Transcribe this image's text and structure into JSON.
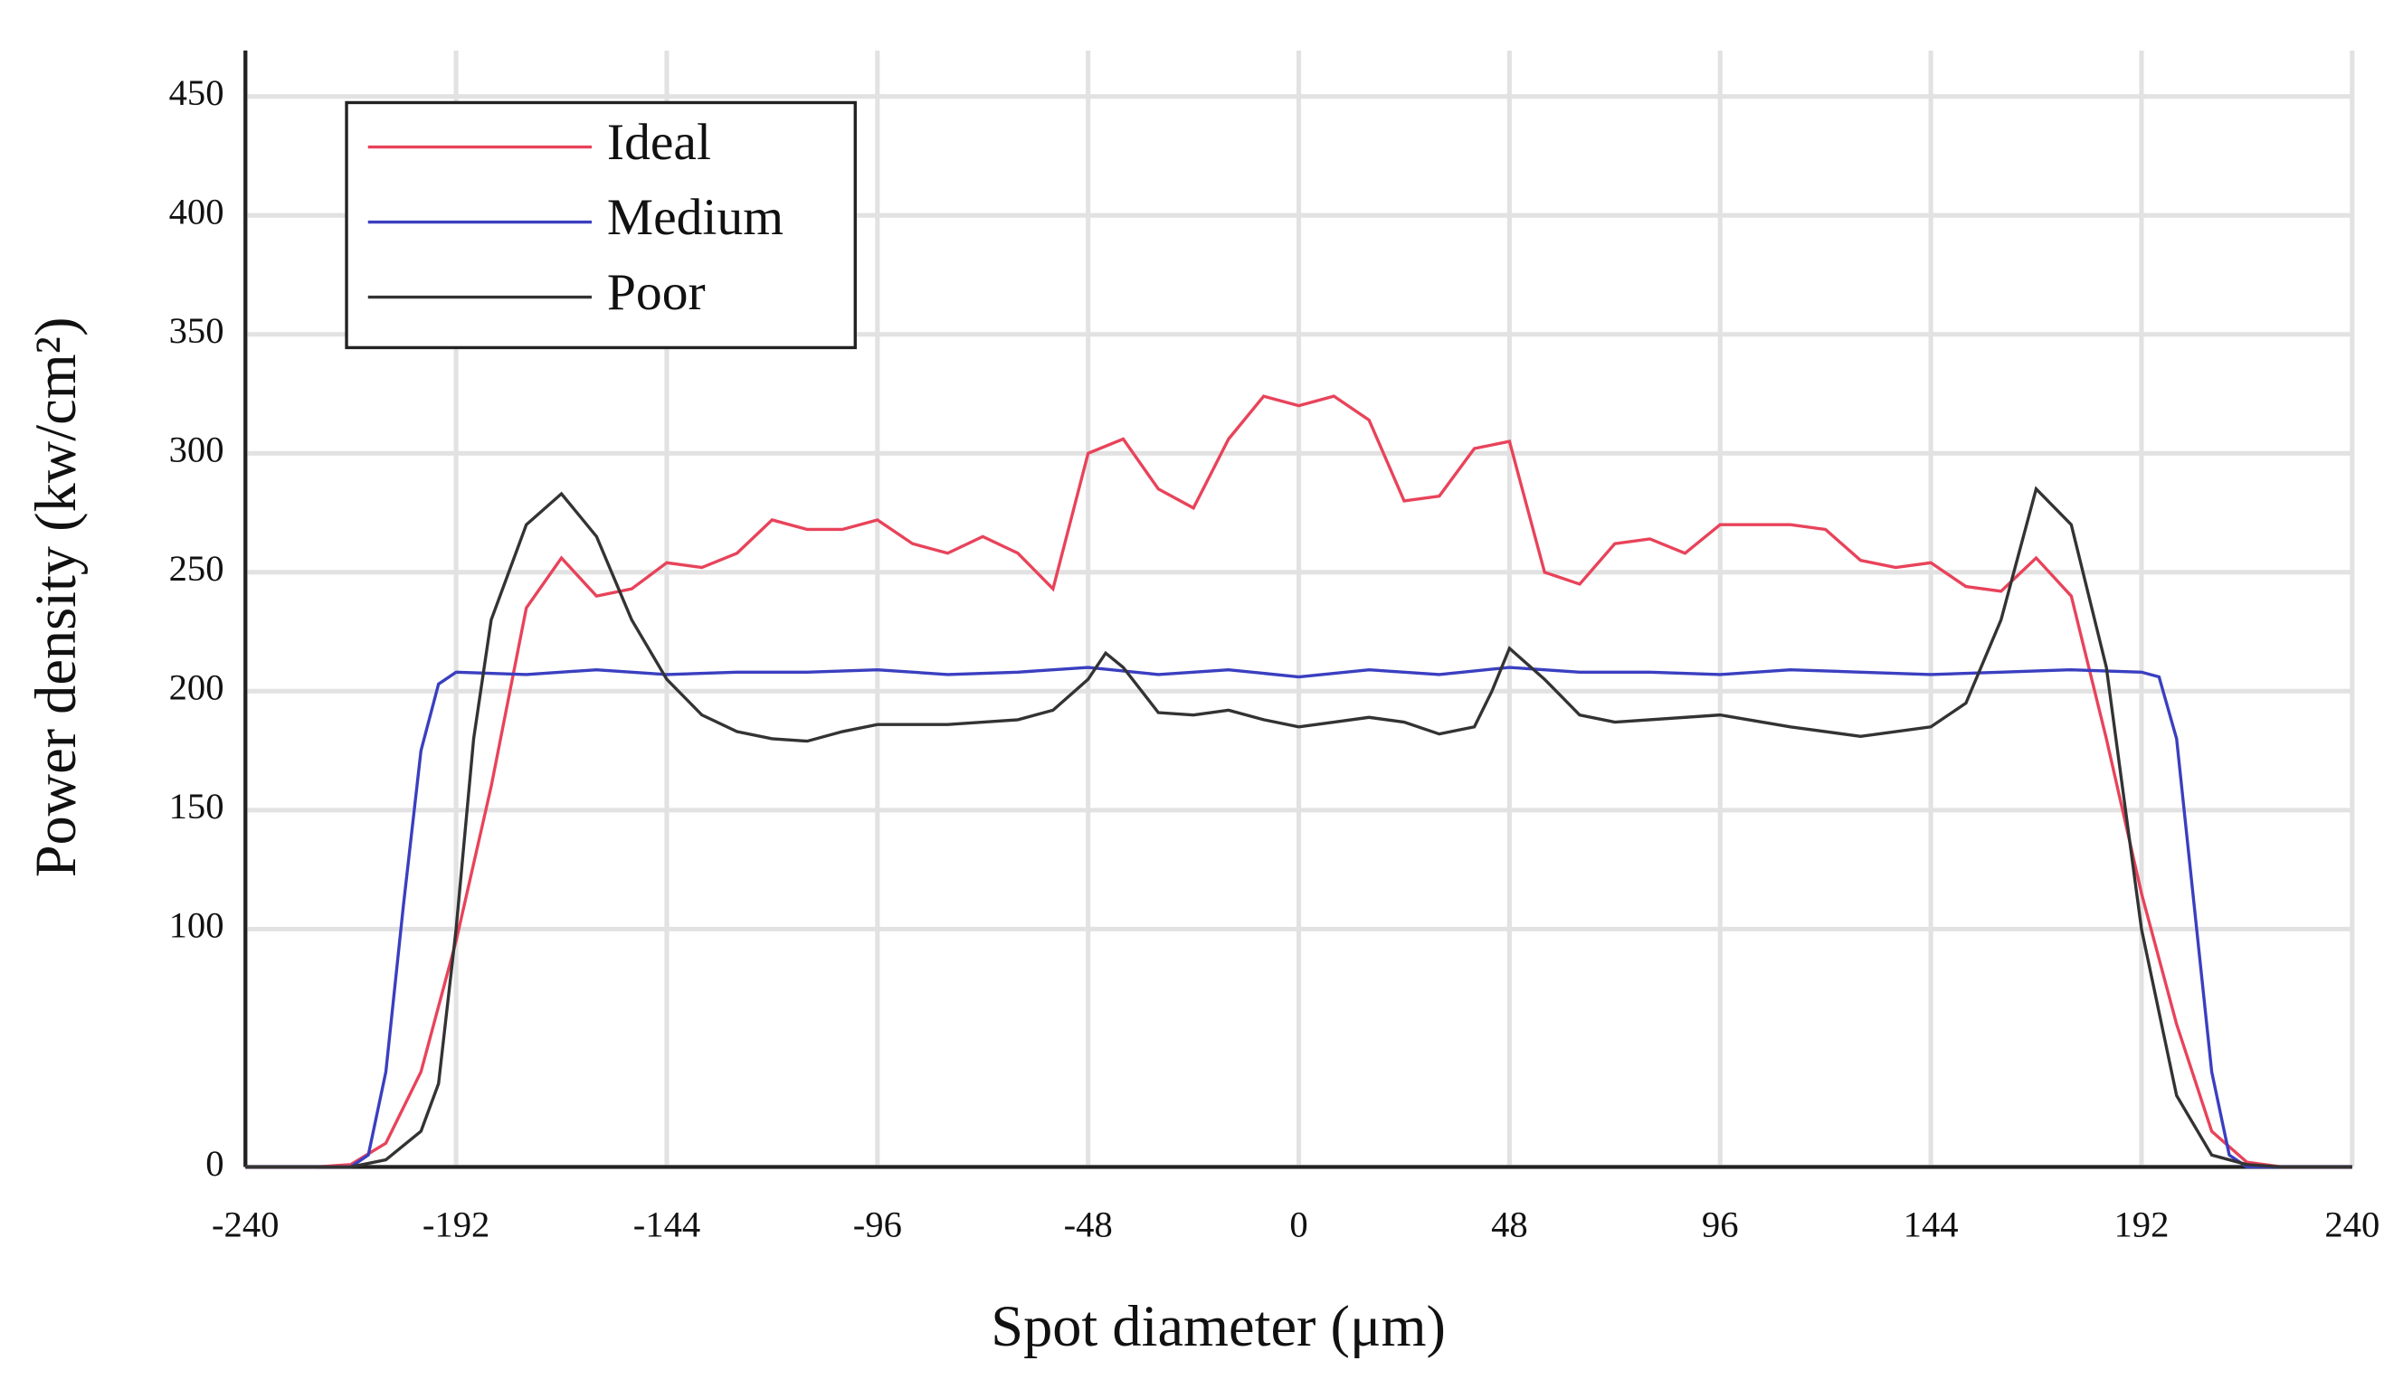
{
  "chart_data": {
    "type": "line",
    "xlabel": "Spot diameter (μm)",
    "ylabel": "Power density (kw/cm²)",
    "xlim": [
      -240,
      240
    ],
    "ylim": [
      0,
      450
    ],
    "xticks": [
      -240,
      -192,
      -144,
      -96,
      -48,
      0,
      48,
      96,
      144,
      192,
      240
    ],
    "yticks": [
      0,
      100,
      150,
      200,
      250,
      300,
      350,
      400,
      450
    ],
    "grid": true,
    "legend": "upper left",
    "series": [
      {
        "name": "Ideal",
        "color": "#e8435a",
        "x": [
          -240,
          -224,
          -216,
          -208,
          -200,
          -192,
          -184,
          -176,
          -168,
          -160,
          -152,
          -144,
          -136,
          -128,
          -120,
          -112,
          -104,
          -96,
          -88,
          -80,
          -72,
          -64,
          -56,
          -48,
          -40,
          -32,
          -24,
          -16,
          -8,
          0,
          8,
          16,
          24,
          32,
          40,
          48,
          56,
          64,
          72,
          80,
          88,
          96,
          104,
          112,
          120,
          128,
          136,
          144,
          152,
          160,
          168,
          176,
          184,
          192,
          200,
          208,
          216,
          224,
          240
        ],
        "values": [
          0,
          0,
          1,
          10,
          40,
          95,
          160,
          235,
          256,
          240,
          243,
          254,
          252,
          258,
          272,
          268,
          268,
          272,
          262,
          258,
          265,
          258,
          243,
          300,
          306,
          285,
          277,
          306,
          324,
          320,
          324,
          314,
          280,
          282,
          302,
          305,
          250,
          245,
          262,
          264,
          258,
          270,
          270,
          270,
          268,
          255,
          252,
          254,
          244,
          242,
          256,
          240,
          180,
          115,
          60,
          15,
          2,
          0,
          0
        ]
      },
      {
        "name": "Medium",
        "color": "#3a3fc0",
        "x": [
          -240,
          -216,
          -212,
          -208,
          -204,
          -200,
          -196,
          -192,
          -176,
          -160,
          -144,
          -128,
          -112,
          -96,
          -80,
          -64,
          -48,
          -32,
          -16,
          0,
          16,
          32,
          48,
          64,
          80,
          96,
          112,
          128,
          144,
          160,
          176,
          192,
          196,
          200,
          204,
          208,
          212,
          216,
          240
        ],
        "values": [
          0,
          0,
          5,
          40,
          110,
          175,
          203,
          208,
          207,
          209,
          207,
          208,
          208,
          209,
          207,
          208,
          210,
          207,
          209,
          206,
          209,
          207,
          210,
          208,
          208,
          207,
          209,
          208,
          207,
          208,
          209,
          208,
          206,
          180,
          110,
          40,
          5,
          0,
          0
        ]
      },
      {
        "name": "Poor",
        "color": "#333333",
        "x": [
          -240,
          -216,
          -208,
          -200,
          -196,
          -192,
          -188,
          -184,
          -176,
          -168,
          -160,
          -152,
          -144,
          -136,
          -128,
          -120,
          -112,
          -104,
          -96,
          -80,
          -64,
          -56,
          -48,
          -44,
          -40,
          -32,
          -24,
          -16,
          -8,
          0,
          8,
          16,
          24,
          32,
          40,
          44,
          48,
          56,
          64,
          72,
          96,
          112,
          128,
          144,
          152,
          160,
          168,
          176,
          184,
          192,
          200,
          208,
          216,
          224,
          240
        ],
        "values": [
          0,
          0,
          3,
          15,
          35,
          100,
          180,
          230,
          270,
          283,
          265,
          230,
          205,
          190,
          183,
          180,
          179,
          183,
          186,
          186,
          188,
          192,
          205,
          216,
          210,
          191,
          190,
          192,
          188,
          185,
          187,
          189,
          187,
          182,
          185,
          200,
          218,
          205,
          190,
          187,
          190,
          185,
          181,
          185,
          195,
          230,
          285,
          270,
          210,
          100,
          30,
          5,
          1,
          0,
          0
        ]
      }
    ]
  }
}
